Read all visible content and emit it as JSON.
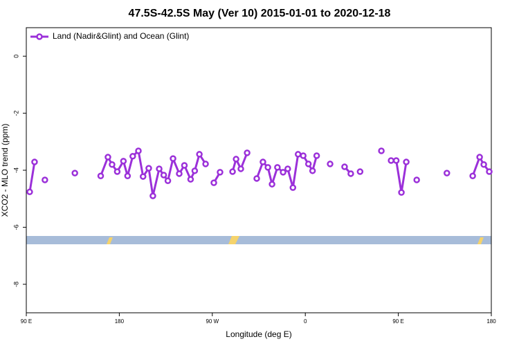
{
  "chart_data": {
    "type": "line",
    "title": "47.5S-42.5S May (Ver 10)   2015-01-01 to 2020-12-18",
    "xlabel": "Longitude (deg E)",
    "ylabel": "XCO2 - MLO trend (ppm)",
    "xlim": [
      90,
      540
    ],
    "ylim": [
      -9,
      1
    ],
    "xticks": [
      {
        "value": 90,
        "label": "90 E"
      },
      180,
      {
        "value": 270,
        "label": "90 W"
      },
      {
        "value": 360,
        "label": "0"
      },
      {
        "value": 450,
        "label": "90 E"
      },
      {
        "value": 540,
        "label": "180"
      }
    ],
    "yticks": [
      0,
      -2,
      -4,
      -6,
      -8
    ],
    "legend": "top-left",
    "series": [
      {
        "name": "Land (Nadir&Glint) and Ocean (Glint)",
        "color": "#9b30d9",
        "x": [
          93.3,
          98,
          null,
          108,
          null,
          137,
          null,
          162,
          169,
          173,
          178,
          184,
          188,
          193,
          198.5,
          203,
          208.5,
          212.5,
          218.6,
          223,
          227,
          232,
          238,
          243,
          249,
          253,
          257.5,
          263.5,
          null,
          271.5,
          277.5,
          null,
          289.6,
          293,
          297.6,
          303.7,
          null,
          313,
          319,
          323.8,
          327.8,
          333,
          338.5,
          343,
          348,
          353,
          358,
          363,
          367,
          371,
          null,
          384,
          null,
          398,
          404,
          null,
          413,
          null,
          433.6,
          null,
          443,
          448,
          453,
          457.7,
          null,
          467.8,
          null,
          497,
          null,
          522,
          528.7,
          532.7,
          538
        ],
        "values": [
          -4.76,
          -3.71,
          null,
          -4.34,
          null,
          -4.1,
          null,
          -4.2,
          -3.54,
          -3.8,
          -4.05,
          -3.68,
          -4.2,
          -3.51,
          -3.32,
          -4.22,
          -3.93,
          -4.9,
          -3.95,
          -4.17,
          -4.37,
          -3.59,
          -4.12,
          -3.83,
          -4.32,
          -4.02,
          -3.44,
          -3.78,
          null,
          -4.44,
          -4.07,
          null,
          -4.05,
          -3.61,
          -3.95,
          -3.39,
          null,
          -4.29,
          -3.71,
          -3.9,
          -4.49,
          -3.9,
          -4.07,
          -3.95,
          -4.61,
          -3.44,
          -3.49,
          -3.78,
          -4.02,
          -3.49,
          null,
          -3.78,
          null,
          -3.88,
          -4.12,
          null,
          -4.05,
          null,
          -3.32,
          null,
          -3.66,
          -3.66,
          -4.78,
          -3.71,
          null,
          -4.34,
          null,
          -4.1,
          null,
          -4.2,
          -3.54,
          -3.8,
          -4.05
        ]
      }
    ]
  }
}
